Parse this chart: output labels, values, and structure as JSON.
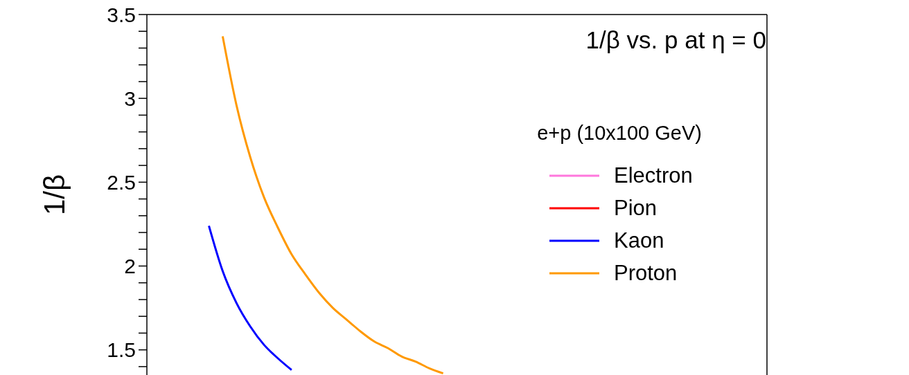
{
  "chart_data": {
    "type": "line",
    "title": "1/β vs. p at η = 0",
    "subtitle": "e+p (10x100 GeV)",
    "ylabel": "1/β",
    "categories": [
      null,
      null,
      null,
      null,
      null,
      null,
      null,
      null,
      null,
      null,
      null,
      null,
      null,
      null,
      null,
      null,
      null,
      null,
      null,
      null,
      null,
      null,
      null,
      null,
      null,
      null,
      null,
      null,
      null,
      null,
      null,
      null,
      null,
      null,
      null,
      null,
      null,
      null,
      null,
      null,
      null,
      null,
      null,
      null,
      null
    ],
    "series": [
      {
        "name": "Electron",
        "color": "#ff77dd",
        "values": [
          null,
          null,
          null,
          null,
          null,
          null,
          null,
          null,
          null,
          null,
          null,
          null,
          null,
          null,
          null,
          null,
          null,
          null,
          null,
          null,
          null,
          null,
          null,
          null,
          null,
          null,
          null,
          null,
          null,
          null,
          null,
          null,
          null,
          null,
          null,
          null,
          null,
          null,
          null,
          null,
          null,
          null,
          null,
          null,
          null
        ]
      },
      {
        "name": "Pion",
        "color": "#ff0000",
        "values": [
          null,
          null,
          null,
          null,
          null,
          null,
          null,
          null,
          null,
          null,
          null,
          null,
          null,
          null,
          null,
          null,
          null,
          null,
          null,
          null,
          null,
          null,
          null,
          null,
          null,
          null,
          null,
          null,
          null,
          null,
          null,
          null,
          null,
          null,
          null,
          null,
          null,
          null,
          null,
          null,
          null,
          null,
          null,
          null,
          null
        ]
      },
      {
        "name": "Kaon",
        "color": "#0000ff",
        "values": [
          null,
          null,
          null,
          null,
          2.24,
          1.97,
          1.78,
          1.64,
          1.53,
          1.45,
          1.38,
          null,
          null,
          null,
          null,
          null,
          null,
          null,
          null,
          null,
          null,
          null,
          null,
          null,
          null,
          null,
          null,
          null,
          null,
          null,
          null,
          null,
          null,
          null,
          null,
          null,
          null,
          null,
          null,
          null,
          null,
          null,
          null,
          null,
          null
        ]
      },
      {
        "name": "Proton",
        "color": "#ff9900",
        "values": [
          null,
          null,
          null,
          null,
          null,
          3.37,
          2.96,
          2.65,
          2.41,
          2.23,
          2.07,
          1.95,
          1.84,
          1.75,
          1.68,
          1.61,
          1.55,
          1.51,
          1.46,
          1.43,
          1.39,
          1.36,
          null,
          null,
          null,
          null,
          null,
          null,
          null,
          null,
          null,
          null,
          null,
          null,
          null,
          null,
          null,
          null,
          null,
          null,
          null,
          null,
          null,
          null,
          null
        ]
      }
    ],
    "ylim": [
      1.35,
      3.5
    ],
    "yticks": [
      {
        "value": 1.4,
        "label": null
      },
      1.5,
      {
        "value": 1.6,
        "label": null
      },
      {
        "value": 1.7,
        "label": null
      },
      {
        "value": 1.8,
        "label": null
      },
      {
        "value": 1.9,
        "label": null
      },
      2,
      {
        "value": 2.1,
        "label": null
      },
      {
        "value": 2.2,
        "label": null
      },
      {
        "value": 2.3,
        "label": null
      },
      {
        "value": 2.4,
        "label": null
      },
      2.5,
      {
        "value": 2.6,
        "label": null
      },
      {
        "value": 2.7,
        "label": null
      },
      {
        "value": 2.8,
        "label": null
      },
      {
        "value": 2.9,
        "label": null
      },
      3,
      {
        "value": 3.1,
        "label": null
      },
      {
        "value": 3.2,
        "label": null
      },
      {
        "value": 3.3,
        "label": null
      },
      {
        "value": 3.4,
        "label": null
      },
      3.5
    ],
    "tick_labels": "y",
    "grid": false,
    "legend": "right",
    "marker": "none",
    "line_style": "solid"
  }
}
